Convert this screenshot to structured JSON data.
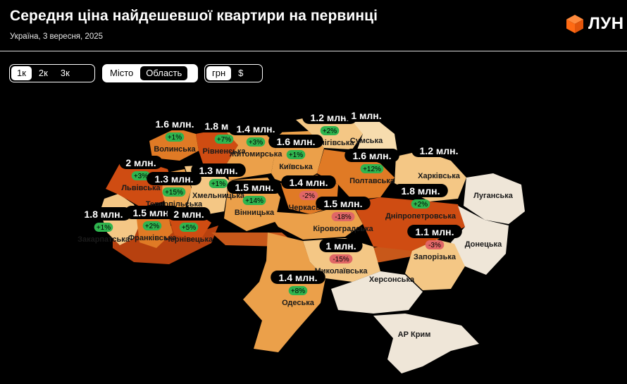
{
  "header": {
    "title": "Середня ціна найдешевшої квартири на первинці",
    "subtitle": "Україна, 3 вересня, 2025",
    "logo_text": "ЛУН",
    "logo_color": "#ff6a13"
  },
  "controls": {
    "rooms": {
      "options": [
        "1к",
        "2к",
        "3к"
      ],
      "selected": "1к"
    },
    "scope": {
      "options": [
        "Місто",
        "Область"
      ],
      "selected": "Область"
    },
    "currency": {
      "options": [
        "грн",
        "$"
      ],
      "selected": "грн"
    }
  },
  "legend_colors": {
    "darkest": "#cf4c12",
    "dark": "#e07a25",
    "mid": "#eba04a",
    "light": "#f4c785",
    "pale": "#f7dcae",
    "no_data": "#efe6d8",
    "badge_positive": "#2fb44e",
    "badge_negative": "#e06666"
  },
  "map": {
    "regions": [
      {
        "name": "Волинська",
        "price": "1.6 млн.",
        "change": "+1%",
        "trend": "up"
      },
      {
        "name": "Рівненська",
        "price": "1.8 млн.",
        "change": "+7%",
        "trend": "up"
      },
      {
        "name": "Житомирська",
        "price": "1.4 млн.",
        "change": "+3%",
        "trend": "up"
      },
      {
        "name": "Чернігівська",
        "price": "1.2 млн.",
        "change": "+2%",
        "trend": "up"
      },
      {
        "name": "Сумська",
        "price": "1 млн.",
        "change": "",
        "trend": "none"
      },
      {
        "name": "Київська",
        "price": "1.6 млн.",
        "change": "+1%",
        "trend": "up"
      },
      {
        "name": "Полтавська",
        "price": "1.6 млн.",
        "change": "+12%",
        "trend": "up"
      },
      {
        "name": "Харківська",
        "price": "1.2 млн.",
        "change": "",
        "trend": "none"
      },
      {
        "name": "Львівська",
        "price": "2 млн.",
        "change": "+3%",
        "trend": "up"
      },
      {
        "name": "Хмельницька",
        "price": "1.3 млн.",
        "change": "+1%",
        "trend": "up"
      },
      {
        "name": "Тернопільська",
        "price": "1.3 млн.",
        "change": "+15%",
        "trend": "up"
      },
      {
        "name": "Вінницька",
        "price": "1.5 млн.",
        "change": "+14%",
        "trend": "up"
      },
      {
        "name": "Черкаська",
        "price": "1.4 млн.",
        "change": "-2%",
        "trend": "down"
      },
      {
        "name": "Кіровоградська",
        "price": "1.5 млн.",
        "change": "-18%",
        "trend": "down"
      },
      {
        "name": "Дніпропетровська",
        "price": "1.8 млн.",
        "change": "+2%",
        "trend": "up"
      },
      {
        "name": "Закарпатська",
        "price": "1.8 млн.",
        "change": "+1%",
        "trend": "up"
      },
      {
        "name": "Франківська",
        "price": "1.5 млн.",
        "change": "+2%",
        "trend": "up"
      },
      {
        "name": "Чернівецька",
        "price": "2 млн.",
        "change": "+5%",
        "trend": "up"
      },
      {
        "name": "Запорізька",
        "price": "1.1 млн.",
        "change": "-3%",
        "trend": "down"
      },
      {
        "name": "Миколаївська",
        "price": "1 млн.",
        "change": "-15%",
        "trend": "down"
      },
      {
        "name": "Одеська",
        "price": "1.4 млн.",
        "change": "+8%",
        "trend": "up"
      },
      {
        "name": "Луганська",
        "price": "",
        "change": "",
        "trend": "none"
      },
      {
        "name": "Донецька",
        "price": "",
        "change": "",
        "trend": "none"
      },
      {
        "name": "Херсонська",
        "price": "",
        "change": "",
        "trend": "none"
      },
      {
        "name": "АР Крим",
        "price": "",
        "change": "",
        "trend": "none"
      }
    ]
  }
}
